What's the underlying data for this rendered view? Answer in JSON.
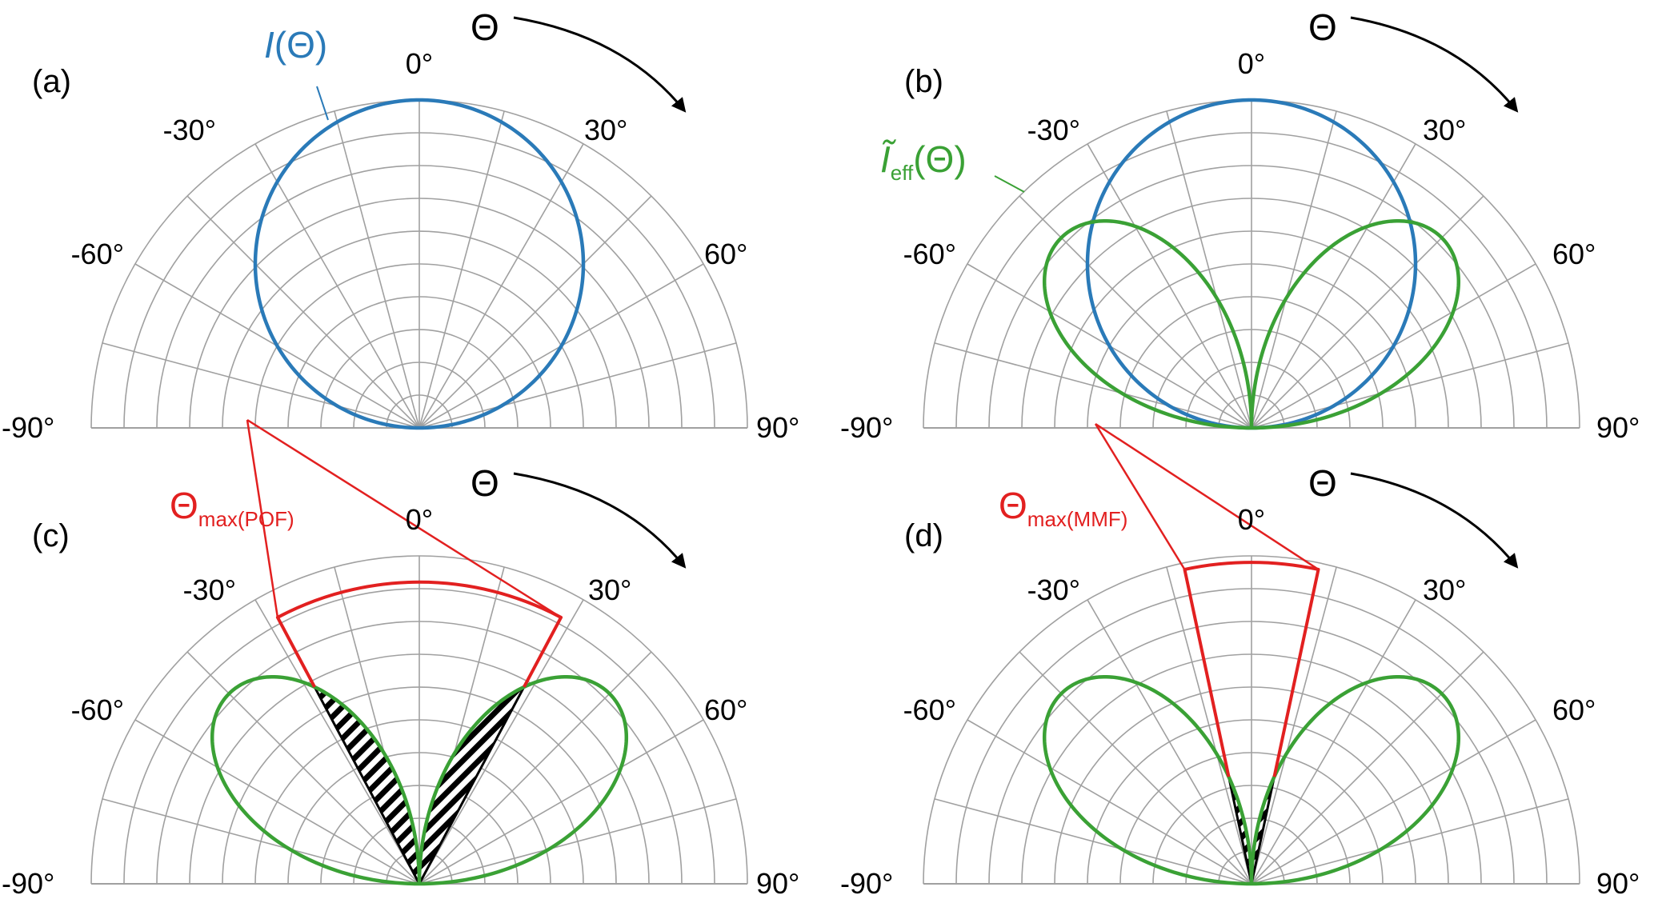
{
  "figure": {
    "description_free": true,
    "colors": {
      "grid": "#a0a0a0",
      "axis": "#a0a0a0",
      "intensity": "#2a7ab8",
      "effective": "#3aa135",
      "aperture": "#e22020",
      "arrow": "#000000",
      "hatch": "#000000"
    }
  },
  "chart_data": [
    {
      "type": "polar",
      "panel": "(a)",
      "angle_ticks": [
        "-90°",
        "-60°",
        "-30°",
        "0°",
        "30°",
        "60°",
        "90°"
      ],
      "theta_symbol": "Θ",
      "rlim": [
        0,
        1
      ],
      "radial_grid_steps": 10,
      "series": [
        {
          "name": "I(Θ)",
          "label_italic": "I",
          "label_rest": "(Θ)",
          "function": "cos",
          "color": "#2a7ab8"
        }
      ]
    },
    {
      "type": "polar",
      "panel": "(b)",
      "angle_ticks": [
        "-90°",
        "-60°",
        "-30°",
        "0°",
        "30°",
        "60°",
        "90°"
      ],
      "theta_symbol": "Θ",
      "rlim": [
        0,
        1
      ],
      "radial_grid_steps": 10,
      "series": [
        {
          "name": "I(Θ)",
          "function": "cos",
          "color": "#2a7ab8"
        },
        {
          "name": "Ĩeff(Θ)",
          "label_main": "Ĩ",
          "label_sub": "eff",
          "label_rest": "(Θ)",
          "function": "effective",
          "peak_angle_deg": 45,
          "peak_value": 0.82,
          "color": "#3aa135"
        }
      ]
    },
    {
      "type": "polar",
      "panel": "(c)",
      "angle_ticks": [
        "-90°",
        "-60°",
        "-30°",
        "0°",
        "30°",
        "60°",
        "90°"
      ],
      "theta_symbol": "Θ",
      "rlim": [
        0,
        1
      ],
      "radial_grid_steps": 10,
      "series": [
        {
          "name": "Ĩeff(Θ)",
          "function": "effective",
          "peak_angle_deg": 45,
          "peak_value": 0.82,
          "color": "#3aa135"
        }
      ],
      "aperture": {
        "name": "Θmax(POF)",
        "label_main": "Θ",
        "label_sub": "max(POF)",
        "half_angle_deg": 28,
        "cap_value": 0.92,
        "color": "#e22020"
      },
      "hatched_lobes": true
    },
    {
      "type": "polar",
      "panel": "(d)",
      "angle_ticks": [
        "-90°",
        "-60°",
        "-30°",
        "0°",
        "30°",
        "60°",
        "90°"
      ],
      "theta_symbol": "Θ",
      "rlim": [
        0,
        1
      ],
      "radial_grid_steps": 10,
      "series": [
        {
          "name": "Ĩeff(Θ)",
          "function": "effective",
          "peak_angle_deg": 45,
          "peak_value": 0.82,
          "color": "#3aa135"
        }
      ],
      "aperture": {
        "name": "Θmax(MMF)",
        "label_main": "Θ",
        "label_sub": "max(MMF)",
        "half_angle_deg": 12,
        "cap_value": 0.98,
        "color": "#e22020"
      },
      "hatched_lobes": true
    }
  ]
}
